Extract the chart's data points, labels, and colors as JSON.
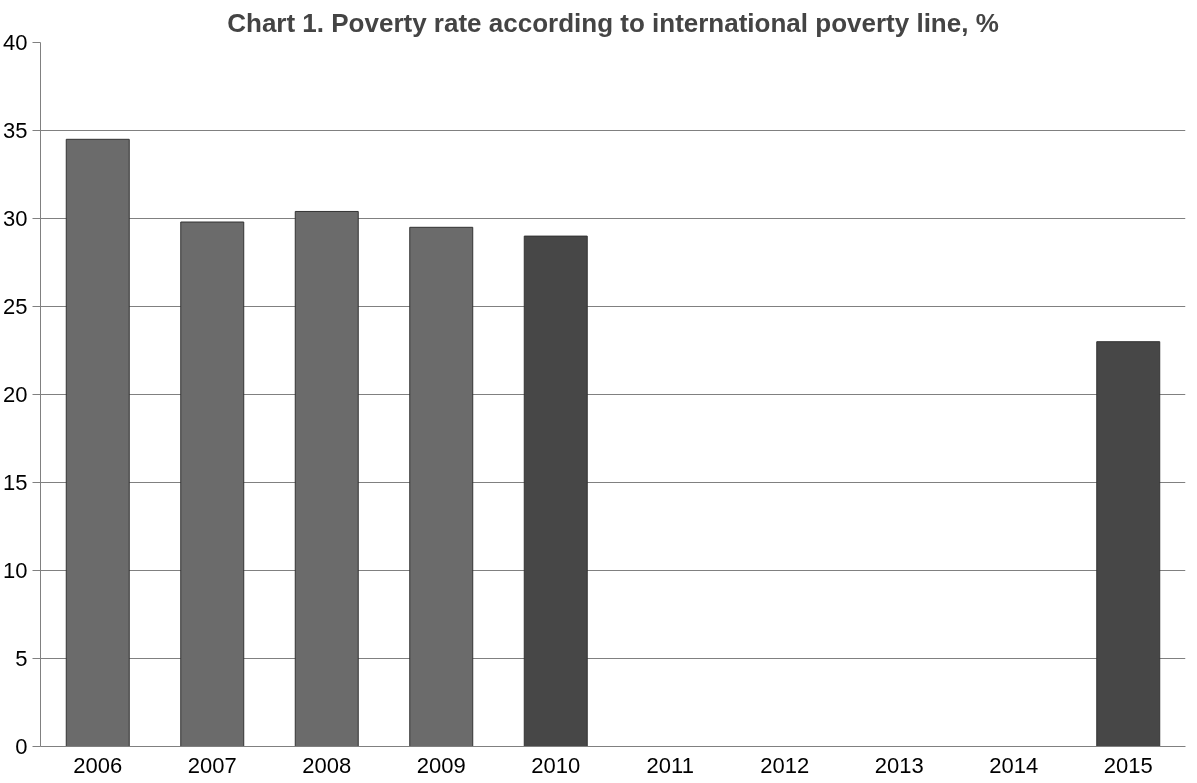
{
  "chart_data": {
    "type": "bar",
    "title": "Chart 1. Poverty rate according to international poverty line, %",
    "categories": [
      "2006",
      "2007",
      "2008",
      "2009",
      "2010",
      "2011",
      "2012",
      "2013",
      "2014",
      "2015"
    ],
    "values": [
      34.5,
      29.8,
      30.4,
      29.5,
      29.0,
      null,
      null,
      null,
      null,
      23.0
    ],
    "colors": [
      "#6b6b6b",
      "#6b6b6b",
      "#6b6b6b",
      "#6b6b6b",
      "#474747",
      "#474747",
      "#474747",
      "#474747",
      "#474747",
      "#474747"
    ],
    "ylim": [
      0,
      40
    ],
    "yticks": [
      0,
      5,
      10,
      15,
      20,
      25,
      30,
      35,
      40
    ],
    "grid": "y"
  }
}
